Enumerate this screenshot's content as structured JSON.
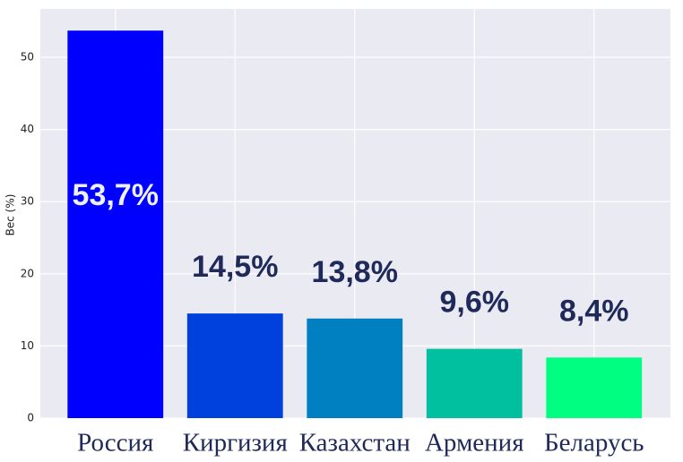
{
  "chart_data": {
    "type": "bar",
    "y_label": "Вес (%)",
    "categories": [
      "Россия",
      "Киргизия",
      "Казахстан",
      "Армения",
      "Беларусь"
    ],
    "values": [
      53.7,
      14.5,
      13.8,
      9.6,
      8.4
    ],
    "value_labels": [
      "53,7%",
      "14,5%",
      "13,8%",
      "9,6%",
      "8,4%"
    ],
    "colors": [
      "#0000ff",
      "#0040dd",
      "#0080c0",
      "#00c0a0",
      "#00ff80"
    ],
    "ylim": [
      0,
      56.7
    ],
    "yticks": [
      0,
      10,
      20,
      30,
      40,
      50
    ],
    "grid": true
  }
}
